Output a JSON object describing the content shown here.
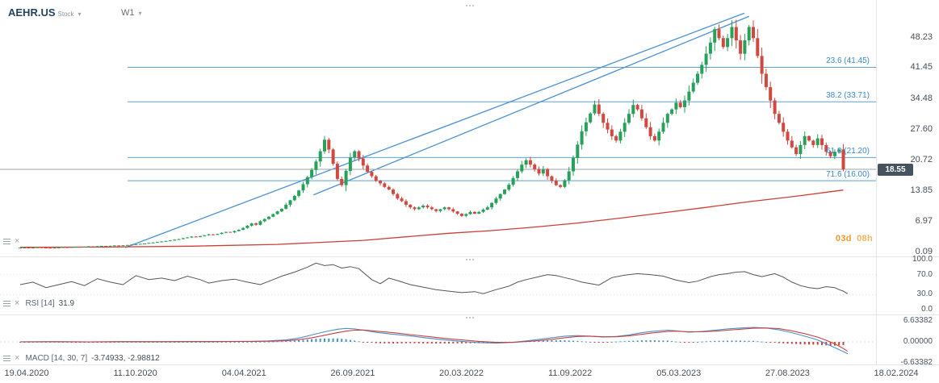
{
  "header": {
    "symbol": "AEHR.US",
    "instrument_type": "Stock",
    "timeframe": "W1"
  },
  "countdown": {
    "days": "03d",
    "hours": "08h"
  },
  "indicators": {
    "rsi_name": "RSI [14]",
    "rsi_value": "31.9",
    "macd_name": "MACD [14, 30, 7]",
    "macd_values": "-3.74933, -2.98812"
  },
  "colors": {
    "candle_up": "#27a05a",
    "candle_down": "#d0483f",
    "fib_line": "#5aa2d8",
    "trend_line": "#4a90d2",
    "ma_line": "#cc3f36",
    "price_line": "#9aa3ab",
    "rsi_line": "#4f565e",
    "macd_line": "#4a90c4",
    "macd_signal": "#c94040",
    "badge_bg": "#46525e",
    "countdown": "#ef9b2d"
  },
  "chart_data": {
    "type": "candlestick",
    "symbol": "AEHR.US",
    "timeframe": "W1",
    "current_price": 18.55,
    "price_ticks": [
      48.23,
      41.45,
      34.48,
      27.6,
      20.72,
      13.85,
      6.97,
      0.09
    ],
    "x_labels": [
      "19.04.2020",
      "11.10.2020",
      "04.04.2021",
      "26.09.2021",
      "20.03.2022",
      "11.09.2022",
      "05.03.2023",
      "27.08.2023",
      "18.02.2024"
    ],
    "fib_levels": [
      {
        "label": "23.6 (41.45)",
        "price": 41.45
      },
      {
        "label": "38.2 (33.71)",
        "price": 33.71
      },
      {
        "label": "61.8 (21.20)",
        "price": 21.2
      },
      {
        "label": "71.6 (16.00)",
        "price": 16.0
      }
    ],
    "trendlines": [
      {
        "from": [
          24.5,
          0.99
        ],
        "to": [
          168.9,
          53.6
        ]
      },
      {
        "from": [
          68.4,
          12.8
        ],
        "to": [
          170,
          52.9
        ]
      }
    ],
    "ma_line": [
      [
        0,
        1.05
      ],
      [
        20,
        1.1
      ],
      [
        40,
        1.3
      ],
      [
        60,
        1.7
      ],
      [
        80,
        2.6
      ],
      [
        100,
        4.2
      ],
      [
        110,
        4.8
      ],
      [
        120,
        5.6
      ],
      [
        130,
        6.5
      ],
      [
        140,
        7.6
      ],
      [
        150,
        8.8
      ],
      [
        160,
        10.0
      ],
      [
        170,
        11.3
      ],
      [
        180,
        12.4
      ],
      [
        192,
        13.9
      ]
    ],
    "closes": [
      0.95,
      1.0,
      0.92,
      0.98,
      1.05,
      1.0,
      0.94,
      0.9,
      0.96,
      1.02,
      1.08,
      1.04,
      1.1,
      1.16,
      1.12,
      1.2,
      1.26,
      1.22,
      1.3,
      1.36,
      1.32,
      1.4,
      1.46,
      1.42,
      1.5,
      1.58,
      1.66,
      1.74,
      1.82,
      1.92,
      2.02,
      2.12,
      2.24,
      2.36,
      2.48,
      2.6,
      2.75,
      2.9,
      3.1,
      3.25,
      3.45,
      3.35,
      3.55,
      3.75,
      3.95,
      3.85,
      4.05,
      4.3,
      4.5,
      4.4,
      4.7,
      5.0,
      5.4,
      5.9,
      6.4,
      6.1,
      6.9,
      7.4,
      7.9,
      8.5,
      9.1,
      9.7,
      10.6,
      11.6,
      12.6,
      13.8,
      15.2,
      16.8,
      18.4,
      20.3,
      22.6,
      25.2,
      23.0,
      19.8,
      16.4,
      15.0,
      18.2,
      21.2,
      22.6,
      21.0,
      19.4,
      18.0,
      17.0,
      16.0,
      15.4,
      14.6,
      14.0,
      13.0,
      12.0,
      11.4,
      10.6,
      10.0,
      9.6,
      10.0,
      10.4,
      10.0,
      9.6,
      9.2,
      9.6,
      10.0,
      9.6,
      9.1,
      8.6,
      8.1,
      8.5,
      9.0,
      8.6,
      9.0,
      9.5,
      10.0,
      11.0,
      12.0,
      13.0,
      14.0,
      15.1,
      16.6,
      18.1,
      19.6,
      20.6,
      19.6,
      18.6,
      17.6,
      18.6,
      17.0,
      16.0,
      15.0,
      14.6,
      16.1,
      18.1,
      21.1,
      24.1,
      27.1,
      29.1,
      31.1,
      33.1,
      31.0,
      29.0,
      27.5,
      26.0,
      25.0,
      27.0,
      29.0,
      31.0,
      33.0,
      32.0,
      30.0,
      28.0,
      26.0,
      25.0,
      27.0,
      29.0,
      31.0,
      32.0,
      33.5,
      32.5,
      34.0,
      36.0,
      38.0,
      40.0,
      42.0,
      44.5,
      47.0,
      50.0,
      48.0,
      46.0,
      48.0,
      50.5,
      47.5,
      44.5,
      47.5,
      50.5,
      48.0,
      44.0,
      40.0,
      37.0,
      34.0,
      31.0,
      29.0,
      27.0,
      25.0,
      23.5,
      22.0,
      24.0,
      26.0,
      25.0,
      24.0,
      25.5,
      24.0,
      22.5,
      21.5,
      22.5,
      23.0,
      18.55
    ],
    "rsi": {
      "type": "line",
      "ticks": [
        100.0,
        70.0,
        30.0,
        0.0
      ],
      "points": [
        [
          0,
          50
        ],
        [
          3,
          55
        ],
        [
          6,
          44
        ],
        [
          9,
          50
        ],
        [
          12,
          56
        ],
        [
          15,
          48
        ],
        [
          18,
          62
        ],
        [
          21,
          55
        ],
        [
          24,
          50
        ],
        [
          27,
          68
        ],
        [
          30,
          60
        ],
        [
          33,
          63
        ],
        [
          36,
          58
        ],
        [
          39,
          67
        ],
        [
          42,
          60
        ],
        [
          44,
          53
        ],
        [
          47,
          58
        ],
        [
          50,
          61
        ],
        [
          53,
          55
        ],
        [
          56,
          50
        ],
        [
          59,
          60
        ],
        [
          61,
          67
        ],
        [
          64,
          75
        ],
        [
          67,
          85
        ],
        [
          69,
          93
        ],
        [
          71,
          88
        ],
        [
          73,
          90
        ],
        [
          75,
          83
        ],
        [
          77,
          86
        ],
        [
          79,
          82
        ],
        [
          82,
          60
        ],
        [
          84,
          52
        ],
        [
          86,
          63
        ],
        [
          88,
          58
        ],
        [
          91,
          50
        ],
        [
          94,
          45
        ],
        [
          97,
          40
        ],
        [
          100,
          37
        ],
        [
          103,
          34
        ],
        [
          106,
          36
        ],
        [
          108,
          32
        ],
        [
          111,
          40
        ],
        [
          114,
          47
        ],
        [
          116,
          55
        ],
        [
          118,
          60
        ],
        [
          121,
          66
        ],
        [
          123,
          70
        ],
        [
          125,
          68
        ],
        [
          127,
          64
        ],
        [
          129,
          60
        ],
        [
          131,
          55
        ],
        [
          133,
          52
        ],
        [
          135,
          49
        ],
        [
          138,
          64
        ],
        [
          141,
          69
        ],
        [
          144,
          72
        ],
        [
          147,
          70
        ],
        [
          150,
          67
        ],
        [
          153,
          59
        ],
        [
          156,
          54
        ],
        [
          158,
          57
        ],
        [
          161,
          66
        ],
        [
          163,
          70
        ],
        [
          165,
          72
        ],
        [
          167,
          75
        ],
        [
          169,
          76
        ],
        [
          171,
          70
        ],
        [
          173,
          66
        ],
        [
          176,
          72
        ],
        [
          178,
          65
        ],
        [
          180,
          55
        ],
        [
          182,
          48
        ],
        [
          184,
          44
        ],
        [
          186,
          42
        ],
        [
          188,
          46
        ],
        [
          190,
          44
        ],
        [
          191,
          40
        ],
        [
          192,
          37
        ],
        [
          193,
          31.9
        ]
      ]
    },
    "macd": {
      "type": "macd",
      "ticks": [
        6.63382,
        0.0,
        -6.63382
      ],
      "macd_points": [
        [
          0,
          0.02
        ],
        [
          8,
          0.06
        ],
        [
          16,
          -0.02
        ],
        [
          24,
          0.08
        ],
        [
          32,
          0.04
        ],
        [
          40,
          0.1
        ],
        [
          48,
          0.12
        ],
        [
          54,
          0.18
        ],
        [
          58,
          0.3
        ],
        [
          62,
          0.6
        ],
        [
          65,
          1.2
        ],
        [
          68,
          2.2
        ],
        [
          71,
          3.2
        ],
        [
          74,
          4.0
        ],
        [
          76,
          4.25
        ],
        [
          78,
          4.1
        ],
        [
          80,
          3.7
        ],
        [
          83,
          3.0
        ],
        [
          87,
          2.4
        ],
        [
          91,
          1.9
        ],
        [
          95,
          1.2
        ],
        [
          99,
          0.6
        ],
        [
          103,
          0.15
        ],
        [
          107,
          -0.25
        ],
        [
          111,
          -0.4
        ],
        [
          115,
          -0.15
        ],
        [
          118,
          0.3
        ],
        [
          121,
          0.8
        ],
        [
          124,
          1.3
        ],
        [
          127,
          1.8
        ],
        [
          130,
          2.0
        ],
        [
          133,
          1.8
        ],
        [
          136,
          1.5
        ],
        [
          139,
          1.7
        ],
        [
          142,
          2.2
        ],
        [
          145,
          2.9
        ],
        [
          148,
          3.4
        ],
        [
          151,
          3.7
        ],
        [
          153,
          3.5
        ],
        [
          156,
          3.1
        ],
        [
          159,
          3.3
        ],
        [
          162,
          3.7
        ],
        [
          165,
          4.1
        ],
        [
          168,
          4.4
        ],
        [
          171,
          4.6
        ],
        [
          174,
          4.4
        ],
        [
          177,
          3.8
        ],
        [
          180,
          2.9
        ],
        [
          183,
          1.8
        ],
        [
          186,
          0.6
        ],
        [
          188,
          -0.6
        ],
        [
          190,
          -1.8
        ],
        [
          192,
          -3.1
        ],
        [
          193,
          -3.74933
        ]
      ],
      "signal_points": [
        [
          0,
          0.01
        ],
        [
          8,
          0.04
        ],
        [
          16,
          0.0
        ],
        [
          24,
          0.05
        ],
        [
          32,
          0.04
        ],
        [
          40,
          0.08
        ],
        [
          48,
          0.1
        ],
        [
          54,
          0.14
        ],
        [
          58,
          0.2
        ],
        [
          62,
          0.35
        ],
        [
          65,
          0.7
        ],
        [
          68,
          1.3
        ],
        [
          71,
          2.1
        ],
        [
          74,
          2.9
        ],
        [
          76,
          3.4
        ],
        [
          78,
          3.7
        ],
        [
          80,
          3.75
        ],
        [
          83,
          3.4
        ],
        [
          87,
          2.9
        ],
        [
          91,
          2.3
        ],
        [
          95,
          1.7
        ],
        [
          99,
          1.1
        ],
        [
          103,
          0.6
        ],
        [
          107,
          0.15
        ],
        [
          111,
          -0.15
        ],
        [
          115,
          -0.15
        ],
        [
          118,
          0.1
        ],
        [
          121,
          0.4
        ],
        [
          124,
          0.8
        ],
        [
          127,
          1.3
        ],
        [
          130,
          1.7
        ],
        [
          133,
          1.8
        ],
        [
          136,
          1.6
        ],
        [
          139,
          1.6
        ],
        [
          142,
          1.9
        ],
        [
          145,
          2.4
        ],
        [
          148,
          2.9
        ],
        [
          151,
          3.3
        ],
        [
          153,
          3.4
        ],
        [
          156,
          3.2
        ],
        [
          159,
          3.2
        ],
        [
          162,
          3.4
        ],
        [
          165,
          3.7
        ],
        [
          168,
          4.0
        ],
        [
          171,
          4.3
        ],
        [
          174,
          4.4
        ],
        [
          177,
          4.2
        ],
        [
          180,
          3.5
        ],
        [
          183,
          2.6
        ],
        [
          186,
          1.5
        ],
        [
          188,
          0.5
        ],
        [
          190,
          -0.6
        ],
        [
          192,
          -2.1
        ],
        [
          193,
          -2.98812
        ]
      ]
    }
  }
}
